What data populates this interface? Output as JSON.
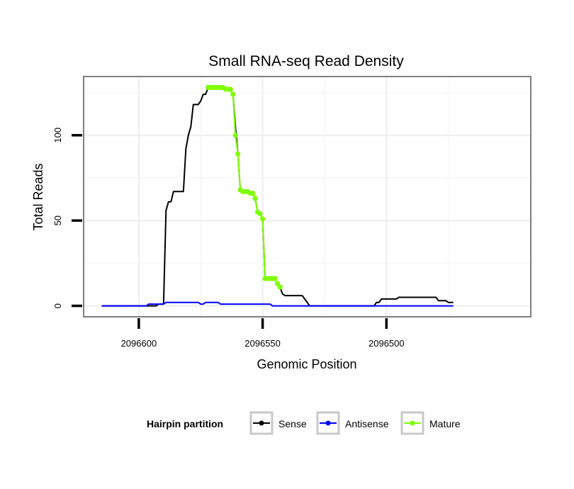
{
  "chart_data": {
    "type": "line",
    "title": "Small RNA-seq Read Density",
    "xlabel": "Genomic Position",
    "ylabel": "Total Reads",
    "xlim": [
      2096622,
      2096442
    ],
    "ylim": [
      -6,
      134
    ],
    "x_reversed": true,
    "x_ticks": [
      {
        "value": 2096600,
        "label": "2096600"
      },
      {
        "value": 2096550,
        "label": "2096550"
      },
      {
        "value": 2096500,
        "label": "2096500"
      }
    ],
    "y_ticks": [
      {
        "value": 0,
        "label": "0"
      },
      {
        "value": 50,
        "label": "50"
      },
      {
        "value": 100,
        "label": "100"
      }
    ],
    "grid": true,
    "legend": {
      "title": "Hairpin partition",
      "position": "bottom",
      "entries": [
        {
          "name": "Sense",
          "color": "#000000"
        },
        {
          "name": "Antisense",
          "color": "#0000ff"
        },
        {
          "name": "Mature",
          "color": "#7fff00"
        }
      ]
    },
    "series": [
      {
        "name": "Sense",
        "color": "#000000",
        "step": true,
        "points": [
          [
            2096615,
            0
          ],
          [
            2096605,
            0
          ],
          [
            2096597,
            0
          ],
          [
            2096593,
            0
          ],
          [
            2096592,
            1
          ],
          [
            2096590,
            1
          ],
          [
            2096589,
            56
          ],
          [
            2096588,
            61
          ],
          [
            2096587,
            61
          ],
          [
            2096586,
            67
          ],
          [
            2096582,
            67
          ],
          [
            2096581,
            92
          ],
          [
            2096580,
            100
          ],
          [
            2096579,
            105
          ],
          [
            2096578,
            118
          ],
          [
            2096576,
            118
          ],
          [
            2096575,
            120
          ],
          [
            2096574,
            124
          ],
          [
            2096573,
            124
          ],
          [
            2096572,
            128
          ],
          [
            2096566,
            128
          ],
          [
            2096565,
            127
          ],
          [
            2096563,
            127
          ],
          [
            2096562,
            124
          ],
          [
            2096561,
            105
          ],
          [
            2096560,
            89
          ],
          [
            2096559,
            68
          ],
          [
            2096558,
            67
          ],
          [
            2096555,
            67
          ],
          [
            2096554,
            66
          ],
          [
            2096553,
            63
          ],
          [
            2096552,
            55
          ],
          [
            2096551,
            54
          ],
          [
            2096550,
            51
          ],
          [
            2096549,
            16
          ],
          [
            2096545,
            16
          ],
          [
            2096544,
            13
          ],
          [
            2096543,
            11
          ],
          [
            2096542,
            7
          ],
          [
            2096541,
            6
          ],
          [
            2096534,
            6
          ],
          [
            2096533,
            4
          ],
          [
            2096532,
            2
          ],
          [
            2096531,
            0
          ],
          [
            2096505,
            0
          ],
          [
            2096504,
            2
          ],
          [
            2096503,
            2
          ],
          [
            2096502,
            4
          ],
          [
            2096496,
            4
          ],
          [
            2096495,
            5
          ],
          [
            2096480,
            5
          ],
          [
            2096479,
            3
          ],
          [
            2096476,
            3
          ],
          [
            2096475,
            2
          ],
          [
            2096473,
            2
          ]
        ]
      },
      {
        "name": "Antisense",
        "color": "#0000ff",
        "step": true,
        "points": [
          [
            2096615,
            0
          ],
          [
            2096597,
            0
          ],
          [
            2096596,
            1
          ],
          [
            2096590,
            1
          ],
          [
            2096589,
            2
          ],
          [
            2096583,
            2
          ],
          [
            2096576,
            2
          ],
          [
            2096575,
            1
          ],
          [
            2096574,
            1
          ],
          [
            2096573,
            2
          ],
          [
            2096568,
            2
          ],
          [
            2096567,
            1
          ],
          [
            2096553,
            1
          ],
          [
            2096547,
            1
          ],
          [
            2096546,
            0
          ],
          [
            2096473,
            0
          ]
        ]
      },
      {
        "name": "Mature",
        "color": "#7fff00",
        "step": false,
        "points": [
          [
            2096572,
            128
          ],
          [
            2096571,
            128
          ],
          [
            2096570,
            128
          ],
          [
            2096569,
            128
          ],
          [
            2096568,
            128
          ],
          [
            2096567,
            128
          ],
          [
            2096566,
            128
          ],
          [
            2096565,
            127
          ],
          [
            2096564,
            127
          ],
          [
            2096563,
            127
          ],
          [
            2096562,
            124
          ],
          [
            2096561,
            100
          ],
          [
            2096560,
            89
          ],
          [
            2096559,
            68
          ],
          [
            2096558,
            67
          ],
          [
            2096557,
            67
          ],
          [
            2096556,
            67
          ],
          [
            2096555,
            66
          ],
          [
            2096554,
            66
          ],
          [
            2096553,
            63
          ],
          [
            2096552,
            55
          ],
          [
            2096551,
            54
          ],
          [
            2096550,
            51
          ],
          [
            2096549,
            16
          ],
          [
            2096548,
            16
          ],
          [
            2096547,
            16
          ],
          [
            2096546,
            16
          ],
          [
            2096545,
            16
          ],
          [
            2096544,
            13
          ],
          [
            2096543,
            11
          ]
        ]
      }
    ]
  }
}
